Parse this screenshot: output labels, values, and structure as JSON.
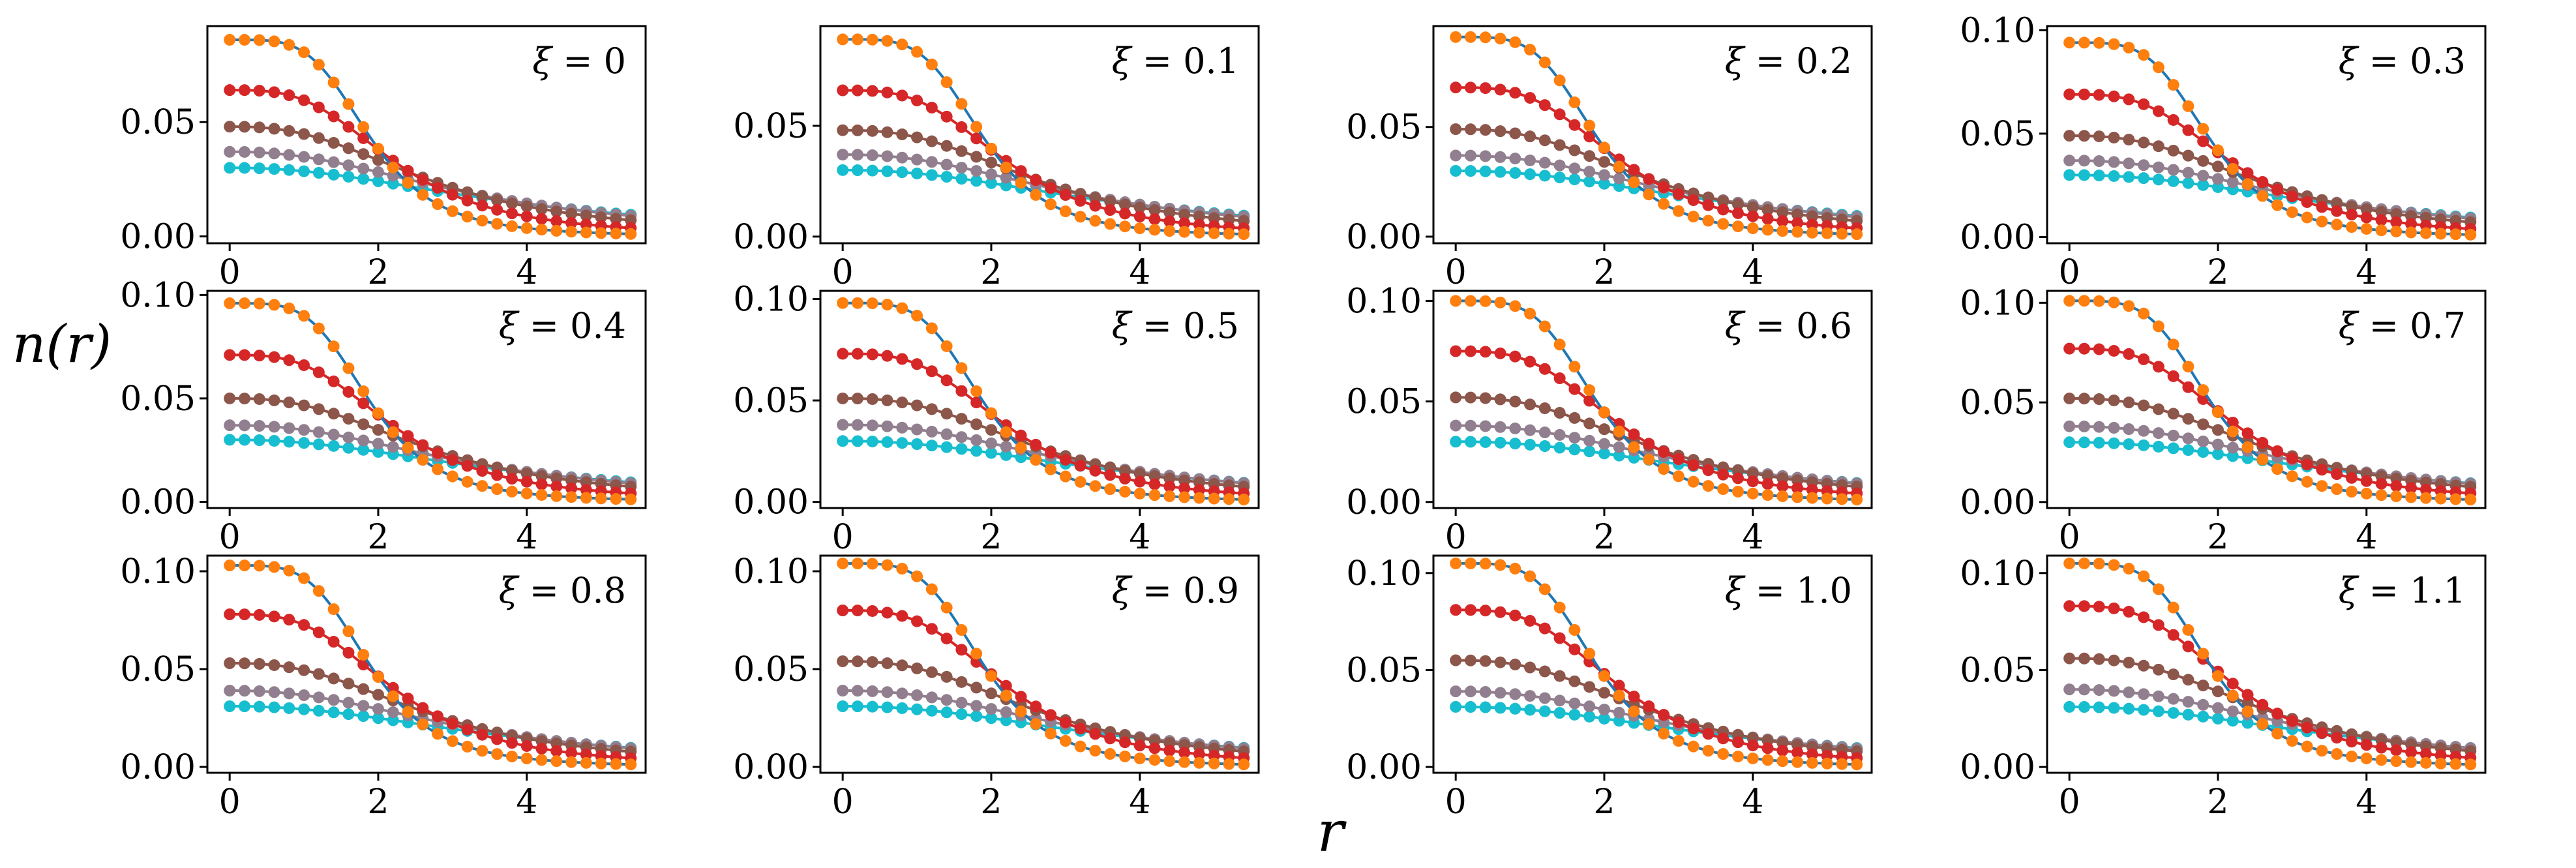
{
  "chart_data": {
    "type": "line",
    "layout": "3x4 grid of small-multiple panels",
    "xlabel": "r",
    "ylabel": "n(r)",
    "xlim": [
      -0.3,
      5.6
    ],
    "xticks": [
      0,
      2,
      4
    ],
    "x": [
      0.0,
      0.2,
      0.4,
      0.6,
      0.8,
      1.0,
      1.2,
      1.4,
      1.6,
      1.8,
      2.0,
      2.2,
      2.4,
      2.6,
      2.8,
      3.0,
      3.2,
      3.4,
      3.6,
      3.8,
      4.0,
      4.2,
      4.4,
      4.6,
      4.8,
      5.0,
      5.2,
      5.4
    ],
    "series_styles": [
      {
        "id": "s1",
        "color": "#ff7f0e",
        "line_color": "#1f77b4"
      },
      {
        "id": "s2",
        "color": "#d62728"
      },
      {
        "id": "s3",
        "color": "#8c564b"
      },
      {
        "id": "s4",
        "color": "#917f8f"
      },
      {
        "id": "s5",
        "color": "#17becf"
      }
    ],
    "panels": [
      {
        "label": "ξ = 0",
        "ylim": [
          -0.003,
          0.092
        ],
        "yticks": [
          "0.00",
          "0.05"
        ],
        "center_values": [
          0.086,
          0.064,
          0.048,
          0.037,
          0.03
        ]
      },
      {
        "label": "ξ = 0.1",
        "ylim": [
          -0.003,
          0.095
        ],
        "yticks": [
          "0.00",
          "0.05"
        ],
        "center_values": [
          0.089,
          0.066,
          0.048,
          0.037,
          0.03
        ]
      },
      {
        "label": "ξ = 0.2",
        "ylim": [
          -0.003,
          0.096
        ],
        "yticks": [
          "0.00",
          "0.05"
        ],
        "center_values": [
          0.091,
          0.068,
          0.049,
          0.037,
          0.03
        ]
      },
      {
        "label": "ξ = 0.3",
        "ylim": [
          -0.003,
          0.102
        ],
        "yticks": [
          "0.00",
          "0.05",
          "0.10"
        ],
        "center_values": [
          0.094,
          0.069,
          0.049,
          0.037,
          0.03
        ]
      },
      {
        "label": "ξ = 0.4",
        "ylim": [
          -0.003,
          0.102
        ],
        "yticks": [
          "0.00",
          "0.05",
          "0.10"
        ],
        "center_values": [
          0.096,
          0.071,
          0.05,
          0.037,
          0.03
        ]
      },
      {
        "label": "ξ = 0.5",
        "ylim": [
          -0.003,
          0.104
        ],
        "yticks": [
          "0.00",
          "0.05",
          "0.10"
        ],
        "center_values": [
          0.098,
          0.073,
          0.051,
          0.038,
          0.03
        ]
      },
      {
        "label": "ξ = 0.6",
        "ylim": [
          -0.003,
          0.105
        ],
        "yticks": [
          "0.00",
          "0.05",
          "0.10"
        ],
        "center_values": [
          0.1,
          0.075,
          0.052,
          0.038,
          0.03
        ]
      },
      {
        "label": "ξ = 0.7",
        "ylim": [
          -0.003,
          0.106
        ],
        "yticks": [
          "0.00",
          "0.05",
          "0.10"
        ],
        "center_values": [
          0.101,
          0.077,
          0.052,
          0.038,
          0.03
        ]
      },
      {
        "label": "ξ = 0.8",
        "ylim": [
          -0.003,
          0.108
        ],
        "yticks": [
          "0.00",
          "0.05",
          "0.10"
        ],
        "center_values": [
          0.103,
          0.078,
          0.053,
          0.039,
          0.031
        ]
      },
      {
        "label": "ξ = 0.9",
        "ylim": [
          -0.003,
          0.108
        ],
        "yticks": [
          "0.00",
          "0.05",
          "0.10"
        ],
        "center_values": [
          0.104,
          0.08,
          0.054,
          0.039,
          0.031
        ]
      },
      {
        "label": "ξ = 1.0",
        "ylim": [
          -0.003,
          0.109
        ],
        "yticks": [
          "0.00",
          "0.05",
          "0.10"
        ],
        "center_values": [
          0.105,
          0.081,
          0.055,
          0.039,
          0.031
        ]
      },
      {
        "label": "ξ = 1.1",
        "ylim": [
          -0.003,
          0.109
        ],
        "yticks": [
          "0.00",
          "0.05",
          "0.10"
        ],
        "center_values": [
          0.105,
          0.083,
          0.056,
          0.04,
          0.031
        ]
      }
    ],
    "profile_shape": {
      "widths": [
        1.9,
        2.25,
        2.75,
        3.3,
        3.8
      ],
      "steepness": [
        4.2,
        3.2,
        2.6,
        2.3,
        2.2
      ]
    }
  }
}
